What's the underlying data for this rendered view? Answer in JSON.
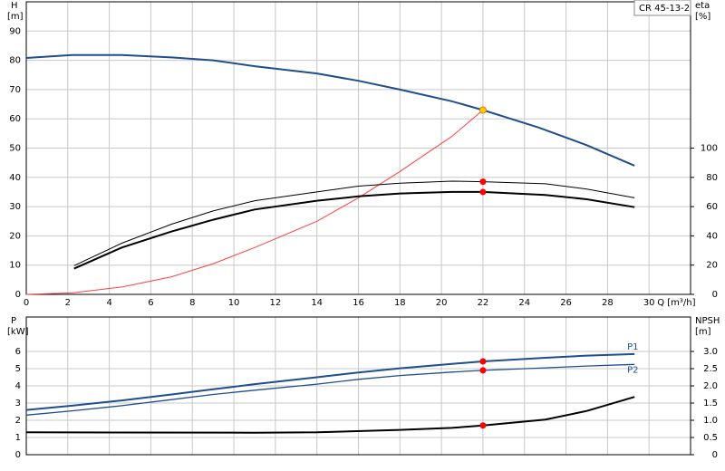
{
  "chart_data": [
    {
      "type": "line",
      "title": "CR 45-13-2",
      "ylabel": [
        "H",
        "[m]"
      ],
      "y2label": [
        "eta",
        "[%]"
      ],
      "xlabel": "Q [m³/h]",
      "xlim": [
        0,
        32
      ],
      "xticks": [
        0,
        2,
        4,
        6,
        8,
        10,
        12,
        14,
        16,
        18,
        20,
        22,
        24,
        26,
        28,
        30
      ],
      "xtick_labels": true,
      "ylim": [
        0,
        100
      ],
      "yticks": [
        0,
        10,
        20,
        30,
        40,
        50,
        60,
        70,
        80,
        90
      ],
      "y2lim": [
        0,
        200
      ],
      "y2ticks": [
        0,
        20,
        40,
        60,
        80,
        100
      ],
      "grid": true,
      "series": [
        {
          "color": "#1f4e8c",
          "width": 2,
          "x": [
            0,
            2.2,
            4.6,
            7,
            9,
            11,
            14,
            16,
            18,
            20.5,
            22,
            24.7,
            27,
            29.3
          ],
          "values": [
            80.8,
            81.8,
            81.8,
            81,
            80,
            78,
            75.5,
            73,
            70,
            66,
            63,
            57,
            51,
            44
          ]
        },
        {
          "color": "#ff4040",
          "width": 1,
          "x": [
            0,
            2.2,
            4.6,
            7,
            9,
            11,
            14,
            16,
            18,
            20.5,
            22
          ],
          "values": [
            0,
            0.5,
            2.5,
            6,
            10.5,
            16,
            25,
            33,
            42,
            54,
            63
          ]
        },
        {
          "color": "#000000",
          "width": 1,
          "axis": "y2",
          "x": [
            2.3,
            4.6,
            7,
            9,
            11,
            14,
            16,
            18,
            20.5,
            22,
            25,
            27,
            29.3
          ],
          "values": [
            19.6,
            35,
            48,
            57,
            64,
            70,
            74,
            76,
            77.4,
            77,
            75.6,
            72,
            66
          ]
        },
        {
          "color": "#000000",
          "width": 2,
          "axis": "y2",
          "x": [
            2.3,
            4.6,
            7,
            9,
            11,
            14,
            16,
            18,
            20.5,
            22,
            25,
            27,
            29.3
          ],
          "values": [
            17.6,
            32,
            43,
            51,
            58,
            64,
            67,
            69,
            70,
            70,
            68,
            65,
            59.6
          ]
        },
        {
          "color": "#ffcc00",
          "marker": true,
          "x": [
            22
          ],
          "values": [
            63
          ]
        },
        {
          "color": "#ff0000",
          "marker": true,
          "axis": "y2",
          "x": [
            22,
            22
          ],
          "values": [
            77,
            70
          ]
        }
      ]
    },
    {
      "type": "line",
      "ylabel": [
        "P",
        "[kW]"
      ],
      "y2label": [
        "NPSH",
        "[m]"
      ],
      "xlim": [
        0,
        32
      ],
      "xticks": [
        0,
        2,
        4,
        6,
        8,
        10,
        12,
        14,
        16,
        18,
        20,
        22,
        24,
        26,
        28,
        30
      ],
      "xtick_labels": false,
      "ylim": [
        0,
        8
      ],
      "yticks": [
        0,
        1,
        2,
        3,
        4,
        5,
        6
      ],
      "y2lim": [
        0,
        4
      ],
      "y2ticks": [
        0,
        0.5,
        {
          "value": 1,
          "label": "1.0"
        },
        1.5,
        {
          "value": 2,
          "label": "2.0"
        },
        2.5,
        {
          "value": 3,
          "label": "3.0"
        }
      ],
      "grid": true,
      "series": [
        {
          "name": "P1",
          "color": "#1f4e8c",
          "width": 2,
          "x": [
            0,
            2.2,
            4.6,
            7,
            9,
            11,
            14,
            16,
            18,
            20.5,
            22,
            25,
            27,
            29.3
          ],
          "values": [
            2.6,
            2.85,
            3.15,
            3.5,
            3.8,
            4.1,
            4.5,
            4.78,
            5.02,
            5.28,
            5.42,
            5.63,
            5.76,
            5.85
          ]
        },
        {
          "name": "P2",
          "color": "#1f4e8c",
          "width": 1.3,
          "x": [
            0,
            2.2,
            4.6,
            7,
            9,
            11,
            14,
            16,
            18,
            20.5,
            22,
            25,
            27,
            29.3
          ],
          "values": [
            2.3,
            2.55,
            2.85,
            3.2,
            3.5,
            3.75,
            4.1,
            4.38,
            4.6,
            4.8,
            4.9,
            5.05,
            5.15,
            5.25
          ]
        },
        {
          "color": "#000000",
          "width": 2,
          "axis": "y2",
          "x": [
            0,
            11,
            14,
            18,
            20.5,
            22,
            25,
            27,
            29.3
          ],
          "values": [
            0.65,
            0.64,
            0.65,
            0.72,
            0.78,
            0.85,
            1.02,
            1.27,
            1.68
          ]
        },
        {
          "color": "#ff0000",
          "marker": true,
          "x": [
            22,
            22
          ],
          "values": [
            5.42,
            4.9
          ]
        },
        {
          "color": "#ff0000",
          "marker": true,
          "axis": "y2",
          "x": [
            22
          ],
          "values": [
            0.85
          ]
        }
      ]
    }
  ]
}
